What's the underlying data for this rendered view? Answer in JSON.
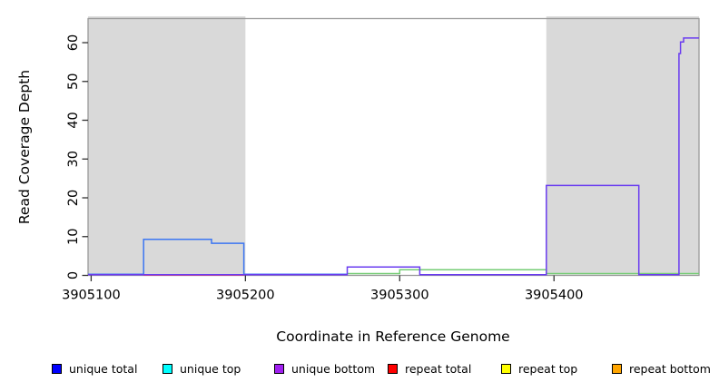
{
  "chart_data": {
    "type": "line",
    "title": "",
    "xlabel": "Coordinate in Reference Genome",
    "ylabel": "Read Coverage Depth",
    "xlim": [
      3905098,
      3905494
    ],
    "ylim": [
      0,
      66.2
    ],
    "xticks": [
      3905100,
      3905200,
      3905300,
      3905400
    ],
    "yticks": [
      0,
      10,
      20,
      30,
      40,
      50,
      60
    ],
    "grid": false,
    "legend_position": "bottom",
    "shade_color": "#d9d9d9",
    "box_color": "#999999",
    "tick_color": "#333333",
    "label_color": "#000000",
    "shaded_regions": [
      {
        "name": "shaded-region-left",
        "x0": 3905098,
        "x1": 3905200
      },
      {
        "name": "shaded-region-right",
        "x0": 3905395,
        "x1": 3905494
      }
    ],
    "series": [
      {
        "name": "repeat top",
        "draw_color": "#74cc74",
        "points": [
          [
            3905266,
            0
          ],
          [
            3905300,
            0
          ],
          [
            3905300,
            1
          ],
          [
            3905395,
            1
          ],
          [
            3905395,
            0
          ],
          [
            3905494,
            0
          ]
        ]
      },
      {
        "name": "repeat total",
        "draw_color": "#ee4f60",
        "points": [
          [
            3905134,
            0
          ],
          [
            3905199,
            0
          ]
        ]
      },
      {
        "name": "unique total",
        "draw_color": "#3c76f2",
        "points": [
          [
            3905098,
            0
          ],
          [
            3905134,
            0
          ],
          [
            3905134,
            9
          ],
          [
            3905178,
            9
          ],
          [
            3905178,
            8
          ],
          [
            3905199,
            8
          ],
          [
            3905199,
            0
          ],
          [
            3905266,
            0
          ]
        ]
      },
      {
        "name": "unique bottom",
        "draw_color": "#6a3cf0",
        "points": [
          [
            3905098,
            0
          ],
          [
            3905266,
            0
          ],
          [
            3905266,
            2
          ],
          [
            3905313,
            2
          ],
          [
            3905313,
            0
          ],
          [
            3905395,
            0
          ],
          [
            3905395,
            23
          ],
          [
            3905455,
            23
          ],
          [
            3905455,
            0
          ],
          [
            3905481,
            0
          ],
          [
            3905481,
            57
          ],
          [
            3905482,
            57
          ],
          [
            3905482,
            60
          ],
          [
            3905484,
            60
          ],
          [
            3905484,
            61
          ],
          [
            3905494,
            61
          ]
        ]
      },
      {
        "name": "unique top",
        "draw_color": "#00ffff",
        "points": []
      },
      {
        "name": "repeat bottom",
        "draw_color": "#ffa500",
        "points": []
      }
    ],
    "legend": [
      {
        "label": "unique total",
        "color": "#0000ff"
      },
      {
        "label": "unique top",
        "color": "#00ffff"
      },
      {
        "label": "unique bottom",
        "color": "#a020f0"
      },
      {
        "label": "repeat total",
        "color": "#ff0000"
      },
      {
        "label": "repeat top",
        "color": "#ffff00"
      },
      {
        "label": "repeat bottom",
        "color": "#ffa500"
      }
    ]
  }
}
